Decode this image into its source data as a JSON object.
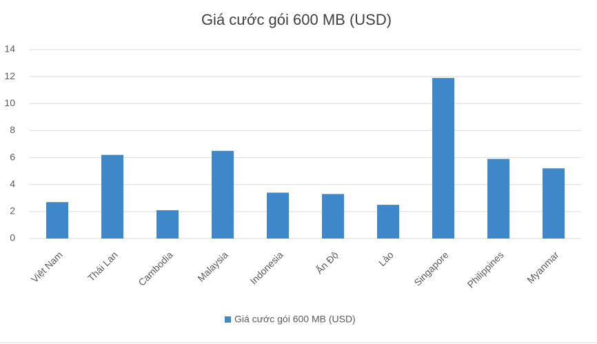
{
  "chart_data": {
    "type": "bar",
    "title": "Giá cước gói 600 MB (USD)",
    "categories": [
      "Việt Nam",
      "Thái Lan",
      "Cambodia",
      "Malaysia",
      "Indonesia",
      "Ấn Độ",
      "Lào",
      "Singapore",
      "Philippines",
      "Myanmar"
    ],
    "series": [
      {
        "name": "Giá cước gói 600 MB (USD)",
        "color": "#3e87c9",
        "values": [
          2.7,
          6.2,
          2.1,
          6.5,
          3.4,
          3.3,
          2.5,
          11.9,
          5.9,
          5.2
        ]
      }
    ],
    "ylim": [
      0,
      14
    ],
    "yticks": [
      0,
      2,
      4,
      6,
      8,
      10,
      12,
      14
    ],
    "grid": true,
    "legend": "bottom"
  }
}
